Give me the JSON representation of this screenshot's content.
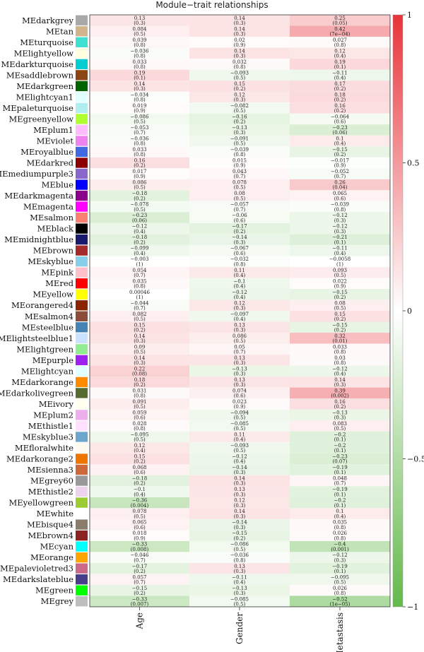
{
  "chart_data": {
    "type": "heatmap",
    "title": "Module−trait relationships",
    "columns": [
      "Age",
      "Gender",
      "Metastasis"
    ],
    "colorbar": {
      "min": -1,
      "max": 1,
      "ticks": [
        "1",
        "0.5",
        "0",
        "−0.5",
        "−1"
      ],
      "tick_values": [
        1,
        0.5,
        0,
        -0.5,
        -1
      ]
    },
    "colors": {
      "positive": "#e8343b",
      "neutral": "#ffffff",
      "negative": "#63b94a"
    },
    "rows": [
      {
        "module": "MEdarkgrey",
        "color": "#a9a9a9",
        "cells": [
          {
            "r": "0.13",
            "p": "(0.3)"
          },
          {
            "r": "0.14",
            "p": "(0.3)"
          },
          {
            "r": "0.25",
            "p": "(0.05)"
          }
        ]
      },
      {
        "module": "MEtan",
        "color": "#d2b48c",
        "cells": [
          {
            "r": "0.084",
            "p": "(0.5)"
          },
          {
            "r": "0.14",
            "p": "(0.3)"
          },
          {
            "r": "0.42",
            "p": "(7e−04)"
          }
        ]
      },
      {
        "module": "MEturquoise",
        "color": "#40e0d0",
        "cells": [
          {
            "r": "0.039",
            "p": "(0.8)"
          },
          {
            "r": "0.02",
            "p": "(0.9)"
          },
          {
            "r": "0.027",
            "p": "(0.8)"
          }
        ]
      },
      {
        "module": "MElightyellow",
        "color": "#ffffe0",
        "cells": [
          {
            "r": "−0.036",
            "p": "(0.8)"
          },
          {
            "r": "0.14",
            "p": "(0.3)"
          },
          {
            "r": "0.12",
            "p": "(0.4)"
          }
        ]
      },
      {
        "module": "MEdarkturquoise",
        "color": "#00ced1",
        "cells": [
          {
            "r": "0.033",
            "p": "(0.8)"
          },
          {
            "r": "0.032",
            "p": "(0.8)"
          },
          {
            "r": "0.19",
            "p": "(0.1)"
          }
        ]
      },
      {
        "module": "MEsaddlebrown",
        "color": "#8b4513",
        "cells": [
          {
            "r": "0.19",
            "p": "(0.1)"
          },
          {
            "r": "−0.093",
            "p": "(0.5)"
          },
          {
            "r": "−0.11",
            "p": "(0.4)"
          }
        ]
      },
      {
        "module": "MEdarkgreen",
        "color": "#006400",
        "cells": [
          {
            "r": "0.14",
            "p": "(0.3)"
          },
          {
            "r": "0.15",
            "p": "(0.2)"
          },
          {
            "r": "0.17",
            "p": "(0.2)"
          }
        ]
      },
      {
        "module": "MElightcyan1",
        "color": "#e0ffff",
        "cells": [
          {
            "r": "−0.034",
            "p": "(0.8)"
          },
          {
            "r": "0.12",
            "p": "(0.3)"
          },
          {
            "r": "0.18",
            "p": "(0.2)"
          }
        ]
      },
      {
        "module": "MEpaleturquoise",
        "color": "#afeeee",
        "cells": [
          {
            "r": "0.019",
            "p": "(0.9)"
          },
          {
            "r": "−0.082",
            "p": "(0.5)"
          },
          {
            "r": "0.16",
            "p": "(0.2)"
          }
        ]
      },
      {
        "module": "MEgreenyellow",
        "color": "#adff2f",
        "cells": [
          {
            "r": "−0.086",
            "p": "(0.5)"
          },
          {
            "r": "−0.16",
            "p": "(0.2)"
          },
          {
            "r": "−0.064",
            "p": "(0.6)"
          }
        ]
      },
      {
        "module": "MEplum1",
        "color": "#ffbbff",
        "cells": [
          {
            "r": "−0.053",
            "p": "(0.7)"
          },
          {
            "r": "−0.13",
            "p": "(0.3)"
          },
          {
            "r": "−0.23",
            "p": "(0.06)"
          }
        ]
      },
      {
        "module": "MEviolet",
        "color": "#ee82ee",
        "cells": [
          {
            "r": "−0.036",
            "p": "(0.8)"
          },
          {
            "r": "−0.091",
            "p": "(0.5)"
          },
          {
            "r": "0.1",
            "p": "(0.4)"
          }
        ]
      },
      {
        "module": "MEroyalblue",
        "color": "#4169e1",
        "cells": [
          {
            "r": "0.033",
            "p": "(0.8)"
          },
          {
            "r": "−0.039",
            "p": "(0.8)"
          },
          {
            "r": "−0.15",
            "p": "(0.2)"
          }
        ]
      },
      {
        "module": "MEdarkred",
        "color": "#8b0000",
        "cells": [
          {
            "r": "0.16",
            "p": "(0.2)"
          },
          {
            "r": "0.015",
            "p": "(0.9)"
          },
          {
            "r": "−0.017",
            "p": "(0.9)"
          }
        ]
      },
      {
        "module": "MEmediumpurple3",
        "color": "#8968cd",
        "cells": [
          {
            "r": "0.017",
            "p": "(0.9)"
          },
          {
            "r": "0.043",
            "p": "(0.7)"
          },
          {
            "r": "−0.052",
            "p": "(0.7)"
          }
        ]
      },
      {
        "module": "MEblue",
        "color": "#0000ff",
        "cells": [
          {
            "r": "0.086",
            "p": "(0.5)"
          },
          {
            "r": "0.078",
            "p": "(0.5)"
          },
          {
            "r": "0.26",
            "p": "(0.04)"
          }
        ]
      },
      {
        "module": "MEdarkmagenta",
        "color": "#8b008b",
        "cells": [
          {
            "r": "−0.18",
            "p": "(0.2)"
          },
          {
            "r": "0.08",
            "p": "(0.5)"
          },
          {
            "r": "0.065",
            "p": "(0.6)"
          }
        ]
      },
      {
        "module": "MEmagenta",
        "color": "#ff00ff",
        "cells": [
          {
            "r": "−0.078",
            "p": "(0.5)"
          },
          {
            "r": "−0.057",
            "p": "(0.7)"
          },
          {
            "r": "−0.039",
            "p": "(0.8)"
          }
        ]
      },
      {
        "module": "MEsalmon",
        "color": "#fa8072",
        "cells": [
          {
            "r": "−0.23",
            "p": "(0.06)"
          },
          {
            "r": "−0.06",
            "p": "(0.6)"
          },
          {
            "r": "−0.12",
            "p": "(0.3)"
          }
        ]
      },
      {
        "module": "MEblack",
        "color": "#000000",
        "cells": [
          {
            "r": "−0.12",
            "p": "(0.4)"
          },
          {
            "r": "−0.17",
            "p": "(0.2)"
          },
          {
            "r": "−0.12",
            "p": "(0.3)"
          }
        ]
      },
      {
        "module": "MEmidnightblue",
        "color": "#191970",
        "cells": [
          {
            "r": "−0.18",
            "p": "(0.2)"
          },
          {
            "r": "−0.14",
            "p": "(0.3)"
          },
          {
            "r": "−0.21",
            "p": "(0.1)"
          }
        ]
      },
      {
        "module": "MEbrown",
        "color": "#a52a2a",
        "cells": [
          {
            "r": "−0.099",
            "p": "(0.4)"
          },
          {
            "r": "−0.067",
            "p": "(0.6)"
          },
          {
            "r": "−0.11",
            "p": "(0.4)"
          }
        ]
      },
      {
        "module": "MEskyblue",
        "color": "#87ceeb",
        "cells": [
          {
            "r": "−0.003",
            "p": "(1)"
          },
          {
            "r": "−0.032",
            "p": "(0.8)"
          },
          {
            "r": "−0.0058",
            "p": "(1)"
          }
        ]
      },
      {
        "module": "MEpink",
        "color": "#ffc0cb",
        "cells": [
          {
            "r": "0.054",
            "p": "(0.7)"
          },
          {
            "r": "0.11",
            "p": "(0.4)"
          },
          {
            "r": "0.093",
            "p": "(0.5)"
          }
        ]
      },
      {
        "module": "MEred",
        "color": "#ff0000",
        "cells": [
          {
            "r": "0.035",
            "p": "(0.8)"
          },
          {
            "r": "−0.1",
            "p": "(0.4)"
          },
          {
            "r": "0.022",
            "p": "(0.9)"
          }
        ]
      },
      {
        "module": "MEyellow",
        "color": "#ffff00",
        "cells": [
          {
            "r": "0.00046",
            "p": "(1)"
          },
          {
            "r": "−0.12",
            "p": "(0.4)"
          },
          {
            "r": "−0.15",
            "p": "(0.2)"
          }
        ]
      },
      {
        "module": "MEorangered4",
        "color": "#8b2500",
        "cells": [
          {
            "r": "−0.044",
            "p": "(0.7)"
          },
          {
            "r": "0.12",
            "p": "(0.3)"
          },
          {
            "r": "0.08",
            "p": "(0.5)"
          }
        ]
      },
      {
        "module": "MEsalmon4",
        "color": "#8b4c39",
        "cells": [
          {
            "r": "0.082",
            "p": "(0.5)"
          },
          {
            "r": "−0.097",
            "p": "(0.4)"
          },
          {
            "r": "0.15",
            "p": "(0.2)"
          }
        ]
      },
      {
        "module": "MEsteelblue",
        "color": "#4682b4",
        "cells": [
          {
            "r": "0.15",
            "p": "(0.2)"
          },
          {
            "r": "0.13",
            "p": "(0.3)"
          },
          {
            "r": "−0.15",
            "p": "(0.2)"
          }
        ]
      },
      {
        "module": "MElightsteelblue1",
        "color": "#cae1ff",
        "cells": [
          {
            "r": "0.14",
            "p": "(0.3)"
          },
          {
            "r": "0.086",
            "p": "(0.5)"
          },
          {
            "r": "0.32",
            "p": "(0.01)"
          }
        ]
      },
      {
        "module": "MElightgreen",
        "color": "#90ee90",
        "cells": [
          {
            "r": "0.09",
            "p": "(0.5)"
          },
          {
            "r": "0.05",
            "p": "(0.7)"
          },
          {
            "r": "0.033",
            "p": "(0.8)"
          }
        ]
      },
      {
        "module": "MEpurple",
        "color": "#a020f0",
        "cells": [
          {
            "r": "0.14",
            "p": "(0.3)"
          },
          {
            "r": "0.13",
            "p": "(0.3)"
          },
          {
            "r": "0.03",
            "p": "(0.8)"
          }
        ]
      },
      {
        "module": "MElightcyan",
        "color": "#e0ffff",
        "cells": [
          {
            "r": "0.22",
            "p": "(0.08)"
          },
          {
            "r": "−0.13",
            "p": "(0.3)"
          },
          {
            "r": "−0.12",
            "p": "(0.4)"
          }
        ]
      },
      {
        "module": "MEdarkorange",
        "color": "#ff8c00",
        "cells": [
          {
            "r": "0.18",
            "p": "(0.2)"
          },
          {
            "r": "0.13",
            "p": "(0.3)"
          },
          {
            "r": "0.14",
            "p": "(0.3)"
          }
        ]
      },
      {
        "module": "MEdarkolivegreen",
        "color": "#556b2f",
        "cells": [
          {
            "r": "0.031",
            "p": "(0.8)"
          },
          {
            "r": "0.074",
            "p": "(0.6)"
          },
          {
            "r": "0.39",
            "p": "(0.002)"
          }
        ]
      },
      {
        "module": "MEivory",
        "color": "#fffff0",
        "cells": [
          {
            "r": "0.091",
            "p": "(0.5)"
          },
          {
            "r": "0.023",
            "p": "(0.9)"
          },
          {
            "r": "0.16",
            "p": "(0.2)"
          }
        ]
      },
      {
        "module": "MEplum2",
        "color": "#eeaeee",
        "cells": [
          {
            "r": "0.059",
            "p": "(0.6)"
          },
          {
            "r": "−0.094",
            "p": "(0.5)"
          },
          {
            "r": "−0.13",
            "p": "(0.3)"
          }
        ]
      },
      {
        "module": "MEthistle1",
        "color": "#ffe1ff",
        "cells": [
          {
            "r": "0.028",
            "p": "(0.8)"
          },
          {
            "r": "−0.085",
            "p": "(0.5)"
          },
          {
            "r": "0.083",
            "p": "(0.5)"
          }
        ]
      },
      {
        "module": "MEskyblue3",
        "color": "#6ca6cd",
        "cells": [
          {
            "r": "−0.095",
            "p": "(0.5)"
          },
          {
            "r": "0.11",
            "p": "(0.4)"
          },
          {
            "r": "−0.2",
            "p": "(0.1)"
          }
        ]
      },
      {
        "module": "MEfloralwhite",
        "color": "#fffaf0",
        "cells": [
          {
            "r": "0.12",
            "p": "(0.4)"
          },
          {
            "r": "−0.093",
            "p": "(0.5)"
          },
          {
            "r": "−0.2",
            "p": "(0.1)"
          }
        ]
      },
      {
        "module": "MEdarkorange2",
        "color": "#ee7600",
        "cells": [
          {
            "r": "0.15",
            "p": "(0.2)"
          },
          {
            "r": "−0.12",
            "p": "(0.4)"
          },
          {
            "r": "−0.23",
            "p": "(0.07)"
          }
        ]
      },
      {
        "module": "MEsienna3",
        "color": "#cd6839",
        "cells": [
          {
            "r": "0.068",
            "p": "(0.6)"
          },
          {
            "r": "−0.14",
            "p": "(0.3)"
          },
          {
            "r": "−0.19",
            "p": "(0.1)"
          }
        ]
      },
      {
        "module": "MEgrey60",
        "color": "#999999",
        "cells": [
          {
            "r": "−0.18",
            "p": "(0.2)"
          },
          {
            "r": "0.14",
            "p": "(0.3)"
          },
          {
            "r": "0.048",
            "p": "(0.7)"
          }
        ]
      },
      {
        "module": "MEthistle2",
        "color": "#eed2ee",
        "cells": [
          {
            "r": "−0.1",
            "p": "(0.4)"
          },
          {
            "r": "0.13",
            "p": "(0.3)"
          },
          {
            "r": "−0.19",
            "p": "(0.1)"
          }
        ]
      },
      {
        "module": "MEyellowgreen",
        "color": "#9acd32",
        "cells": [
          {
            "r": "−0.36",
            "p": "(0.004)"
          },
          {
            "r": "0.12",
            "p": "(0.3)"
          },
          {
            "r": "−0.2",
            "p": "(0.1)"
          }
        ]
      },
      {
        "module": "MEwhite",
        "color": "#ffffff",
        "cells": [
          {
            "r": "0.078",
            "p": "(0.5)"
          },
          {
            "r": "0.14",
            "p": "(0.3)"
          },
          {
            "r": "0.1",
            "p": "(0.4)"
          }
        ]
      },
      {
        "module": "MEbisque4",
        "color": "#8b7d6b",
        "cells": [
          {
            "r": "0.065",
            "p": "(0.6)"
          },
          {
            "r": "−0.14",
            "p": "(0.3)"
          },
          {
            "r": "0.035",
            "p": "(0.8)"
          }
        ]
      },
      {
        "module": "MEbrown4",
        "color": "#8b2323",
        "cells": [
          {
            "r": "0.018",
            "p": "(0.9)"
          },
          {
            "r": "−0.15",
            "p": "(0.2)"
          },
          {
            "r": "0.026",
            "p": "(0.8)"
          }
        ]
      },
      {
        "module": "MEcyan",
        "color": "#00ffff",
        "cells": [
          {
            "r": "−0.33",
            "p": "(0.008)"
          },
          {
            "r": "−0.086",
            "p": "(0.5)"
          },
          {
            "r": "−0.4",
            "p": "(0.001)"
          }
        ]
      },
      {
        "module": "MEorange",
        "color": "#ffa500",
        "cells": [
          {
            "r": "−0.046",
            "p": "(0.7)"
          },
          {
            "r": "−0.036",
            "p": "(0.8)"
          },
          {
            "r": "−0.12",
            "p": "(0.3)"
          }
        ]
      },
      {
        "module": "MEpalevioletred3",
        "color": "#cd6889",
        "cells": [
          {
            "r": "−0.17",
            "p": "(0.2)"
          },
          {
            "r": "0.13",
            "p": "(0.3)"
          },
          {
            "r": "−0.19",
            "p": "(0.1)"
          }
        ]
      },
      {
        "module": "MEdarkslateblue",
        "color": "#483d8b",
        "cells": [
          {
            "r": "0.057",
            "p": "(0.7)"
          },
          {
            "r": "−0.11",
            "p": "(0.4)"
          },
          {
            "r": "−0.095",
            "p": "(0.5)"
          }
        ]
      },
      {
        "module": "MEgreen",
        "color": "#00ff00",
        "cells": [
          {
            "r": "−0.15",
            "p": "(0.2)"
          },
          {
            "r": "−0.13",
            "p": "(0.3)"
          },
          {
            "r": "0.026",
            "p": "(0.8)"
          }
        ]
      },
      {
        "module": "MEgrey",
        "color": "#bebebe",
        "cells": [
          {
            "r": "−0.33",
            "p": "(0.007)"
          },
          {
            "r": "−0.085",
            "p": "(0.5)"
          },
          {
            "r": "−0.52",
            "p": "(1e−05)"
          }
        ]
      }
    ]
  }
}
